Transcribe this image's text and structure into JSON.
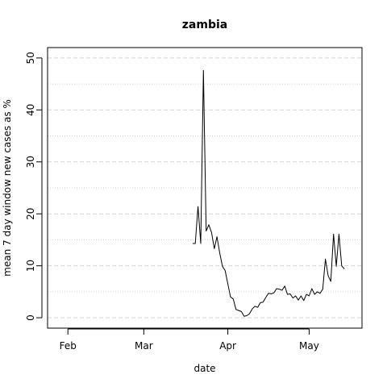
{
  "chart_data": {
    "type": "line",
    "title": "zambia",
    "xlabel": "date",
    "ylabel": "mean  7  day window new cases as %",
    "x_ticks": [
      {
        "label": "Feb",
        "day": 1
      },
      {
        "label": "Mar",
        "day": 29
      },
      {
        "label": "Apr",
        "day": 60
      },
      {
        "label": "May",
        "day": 90
      }
    ],
    "y_ticks": [
      0,
      10,
      20,
      30,
      40,
      50
    ],
    "xlim": [
      -6.5,
      109.5
    ],
    "ylim": [
      -2,
      52
    ],
    "grid_major": [
      0,
      10,
      20,
      30,
      40,
      50
    ],
    "grid_minor": [
      5,
      15,
      25,
      35,
      45
    ],
    "series": [
      {
        "name": "zambia",
        "color": "#000000",
        "x": [
          47,
          48,
          49,
          50,
          51,
          52,
          53,
          54,
          55,
          56,
          57,
          58,
          59,
          60,
          61,
          62,
          63,
          64,
          65,
          66,
          67,
          68,
          69,
          70,
          71,
          72,
          73,
          74,
          75,
          76,
          77,
          78,
          79,
          80,
          81,
          82,
          83,
          84,
          85,
          86,
          87,
          88,
          89,
          90,
          91,
          92,
          93,
          94,
          95,
          96,
          97,
          98,
          99,
          100,
          101,
          102,
          103
        ],
        "values": [
          14.3,
          14.3,
          21.4,
          14.3,
          47.6,
          16.7,
          17.9,
          16.4,
          13.3,
          15.6,
          12.5,
          9.9,
          9.1,
          6.5,
          4.0,
          3.6,
          1.6,
          1.4,
          1.2,
          0.3,
          0.4,
          0.8,
          1.7,
          2.2,
          2.0,
          2.9,
          3.0,
          3.9,
          4.7,
          4.6,
          4.8,
          5.6,
          5.5,
          5.3,
          6.1,
          4.5,
          4.6,
          3.8,
          4.2,
          3.4,
          4.2,
          3.3,
          4.5,
          4.2,
          5.6,
          4.5,
          5.0,
          4.7,
          5.5,
          11.3,
          8.1,
          7.0,
          16.1,
          9.9,
          16.1,
          10.0,
          9.4
        ]
      }
    ]
  }
}
